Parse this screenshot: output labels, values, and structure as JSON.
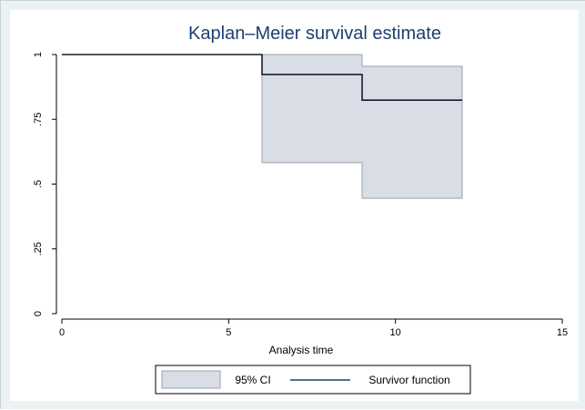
{
  "chart_data": {
    "type": "line",
    "title": "Kaplan–Meier survival estimate",
    "xlabel": "Analysis time",
    "ylabel": "",
    "xlim": [
      0,
      15
    ],
    "ylim": [
      0,
      1
    ],
    "xticks": [
      0,
      5,
      10,
      15
    ],
    "xtick_labels": [
      "0",
      "5",
      "10",
      "15"
    ],
    "yticks": [
      0,
      0.25,
      0.5,
      0.75,
      1
    ],
    "ytick_labels": [
      "0",
      ".25",
      ".5",
      ".75",
      "1"
    ],
    "grid": false,
    "legend_position": "bottom",
    "series": [
      {
        "name": "Survivor function",
        "step": true,
        "x": [
          0,
          6,
          9,
          12
        ],
        "y": [
          1,
          0.923,
          0.824,
          0.824
        ],
        "color": "#1a1a2e"
      },
      {
        "name": "95% CI",
        "type": "band",
        "step": true,
        "x": [
          6,
          9,
          12
        ],
        "lower": [
          0.583,
          0.445,
          0.445
        ],
        "upper": [
          1,
          0.955,
          0.955
        ],
        "color": "#d8dde6"
      }
    ],
    "legend": [
      {
        "label": "95% CI",
        "kind": "band",
        "color": "#d8dde6"
      },
      {
        "label": "Survivor function",
        "kind": "line",
        "color": "#1c3f6e"
      }
    ]
  }
}
